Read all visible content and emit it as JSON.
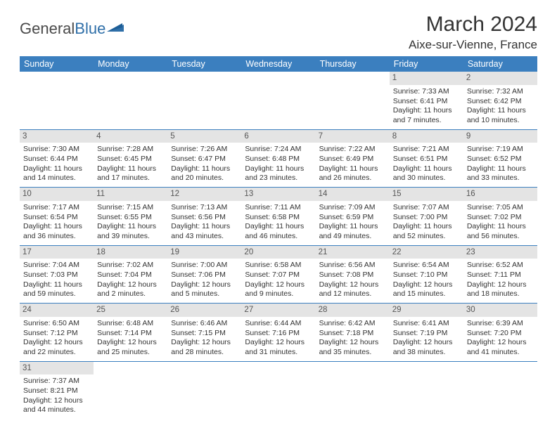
{
  "logo": {
    "part1": "General",
    "part2": "Blue"
  },
  "title": "March 2024",
  "location": "Aixe-sur-Vienne, France",
  "colors": {
    "header_bg": "#3b7fbf",
    "header_text": "#ffffff",
    "daybar": "#e4e4e4",
    "border": "#3b7fbf",
    "text": "#333333",
    "logo_gray": "#4a4a4a",
    "logo_blue": "#2f6fa8"
  },
  "weekdays": [
    "Sunday",
    "Monday",
    "Tuesday",
    "Wednesday",
    "Thursday",
    "Friday",
    "Saturday"
  ],
  "weeks": [
    [
      null,
      null,
      null,
      null,
      null,
      {
        "n": "1",
        "sr": "Sunrise: 7:33 AM",
        "ss": "Sunset: 6:41 PM",
        "dl1": "Daylight: 11 hours",
        "dl2": "and 7 minutes."
      },
      {
        "n": "2",
        "sr": "Sunrise: 7:32 AM",
        "ss": "Sunset: 6:42 PM",
        "dl1": "Daylight: 11 hours",
        "dl2": "and 10 minutes."
      }
    ],
    [
      {
        "n": "3",
        "sr": "Sunrise: 7:30 AM",
        "ss": "Sunset: 6:44 PM",
        "dl1": "Daylight: 11 hours",
        "dl2": "and 14 minutes."
      },
      {
        "n": "4",
        "sr": "Sunrise: 7:28 AM",
        "ss": "Sunset: 6:45 PM",
        "dl1": "Daylight: 11 hours",
        "dl2": "and 17 minutes."
      },
      {
        "n": "5",
        "sr": "Sunrise: 7:26 AM",
        "ss": "Sunset: 6:47 PM",
        "dl1": "Daylight: 11 hours",
        "dl2": "and 20 minutes."
      },
      {
        "n": "6",
        "sr": "Sunrise: 7:24 AM",
        "ss": "Sunset: 6:48 PM",
        "dl1": "Daylight: 11 hours",
        "dl2": "and 23 minutes."
      },
      {
        "n": "7",
        "sr": "Sunrise: 7:22 AM",
        "ss": "Sunset: 6:49 PM",
        "dl1": "Daylight: 11 hours",
        "dl2": "and 26 minutes."
      },
      {
        "n": "8",
        "sr": "Sunrise: 7:21 AM",
        "ss": "Sunset: 6:51 PM",
        "dl1": "Daylight: 11 hours",
        "dl2": "and 30 minutes."
      },
      {
        "n": "9",
        "sr": "Sunrise: 7:19 AM",
        "ss": "Sunset: 6:52 PM",
        "dl1": "Daylight: 11 hours",
        "dl2": "and 33 minutes."
      }
    ],
    [
      {
        "n": "10",
        "sr": "Sunrise: 7:17 AM",
        "ss": "Sunset: 6:54 PM",
        "dl1": "Daylight: 11 hours",
        "dl2": "and 36 minutes."
      },
      {
        "n": "11",
        "sr": "Sunrise: 7:15 AM",
        "ss": "Sunset: 6:55 PM",
        "dl1": "Daylight: 11 hours",
        "dl2": "and 39 minutes."
      },
      {
        "n": "12",
        "sr": "Sunrise: 7:13 AM",
        "ss": "Sunset: 6:56 PM",
        "dl1": "Daylight: 11 hours",
        "dl2": "and 43 minutes."
      },
      {
        "n": "13",
        "sr": "Sunrise: 7:11 AM",
        "ss": "Sunset: 6:58 PM",
        "dl1": "Daylight: 11 hours",
        "dl2": "and 46 minutes."
      },
      {
        "n": "14",
        "sr": "Sunrise: 7:09 AM",
        "ss": "Sunset: 6:59 PM",
        "dl1": "Daylight: 11 hours",
        "dl2": "and 49 minutes."
      },
      {
        "n": "15",
        "sr": "Sunrise: 7:07 AM",
        "ss": "Sunset: 7:00 PM",
        "dl1": "Daylight: 11 hours",
        "dl2": "and 52 minutes."
      },
      {
        "n": "16",
        "sr": "Sunrise: 7:05 AM",
        "ss": "Sunset: 7:02 PM",
        "dl1": "Daylight: 11 hours",
        "dl2": "and 56 minutes."
      }
    ],
    [
      {
        "n": "17",
        "sr": "Sunrise: 7:04 AM",
        "ss": "Sunset: 7:03 PM",
        "dl1": "Daylight: 11 hours",
        "dl2": "and 59 minutes."
      },
      {
        "n": "18",
        "sr": "Sunrise: 7:02 AM",
        "ss": "Sunset: 7:04 PM",
        "dl1": "Daylight: 12 hours",
        "dl2": "and 2 minutes."
      },
      {
        "n": "19",
        "sr": "Sunrise: 7:00 AM",
        "ss": "Sunset: 7:06 PM",
        "dl1": "Daylight: 12 hours",
        "dl2": "and 5 minutes."
      },
      {
        "n": "20",
        "sr": "Sunrise: 6:58 AM",
        "ss": "Sunset: 7:07 PM",
        "dl1": "Daylight: 12 hours",
        "dl2": "and 9 minutes."
      },
      {
        "n": "21",
        "sr": "Sunrise: 6:56 AM",
        "ss": "Sunset: 7:08 PM",
        "dl1": "Daylight: 12 hours",
        "dl2": "and 12 minutes."
      },
      {
        "n": "22",
        "sr": "Sunrise: 6:54 AM",
        "ss": "Sunset: 7:10 PM",
        "dl1": "Daylight: 12 hours",
        "dl2": "and 15 minutes."
      },
      {
        "n": "23",
        "sr": "Sunrise: 6:52 AM",
        "ss": "Sunset: 7:11 PM",
        "dl1": "Daylight: 12 hours",
        "dl2": "and 18 minutes."
      }
    ],
    [
      {
        "n": "24",
        "sr": "Sunrise: 6:50 AM",
        "ss": "Sunset: 7:12 PM",
        "dl1": "Daylight: 12 hours",
        "dl2": "and 22 minutes."
      },
      {
        "n": "25",
        "sr": "Sunrise: 6:48 AM",
        "ss": "Sunset: 7:14 PM",
        "dl1": "Daylight: 12 hours",
        "dl2": "and 25 minutes."
      },
      {
        "n": "26",
        "sr": "Sunrise: 6:46 AM",
        "ss": "Sunset: 7:15 PM",
        "dl1": "Daylight: 12 hours",
        "dl2": "and 28 minutes."
      },
      {
        "n": "27",
        "sr": "Sunrise: 6:44 AM",
        "ss": "Sunset: 7:16 PM",
        "dl1": "Daylight: 12 hours",
        "dl2": "and 31 minutes."
      },
      {
        "n": "28",
        "sr": "Sunrise: 6:42 AM",
        "ss": "Sunset: 7:18 PM",
        "dl1": "Daylight: 12 hours",
        "dl2": "and 35 minutes."
      },
      {
        "n": "29",
        "sr": "Sunrise: 6:41 AM",
        "ss": "Sunset: 7:19 PM",
        "dl1": "Daylight: 12 hours",
        "dl2": "and 38 minutes."
      },
      {
        "n": "30",
        "sr": "Sunrise: 6:39 AM",
        "ss": "Sunset: 7:20 PM",
        "dl1": "Daylight: 12 hours",
        "dl2": "and 41 minutes."
      }
    ],
    [
      {
        "n": "31",
        "sr": "Sunrise: 7:37 AM",
        "ss": "Sunset: 8:21 PM",
        "dl1": "Daylight: 12 hours",
        "dl2": "and 44 minutes."
      },
      null,
      null,
      null,
      null,
      null,
      null
    ]
  ]
}
